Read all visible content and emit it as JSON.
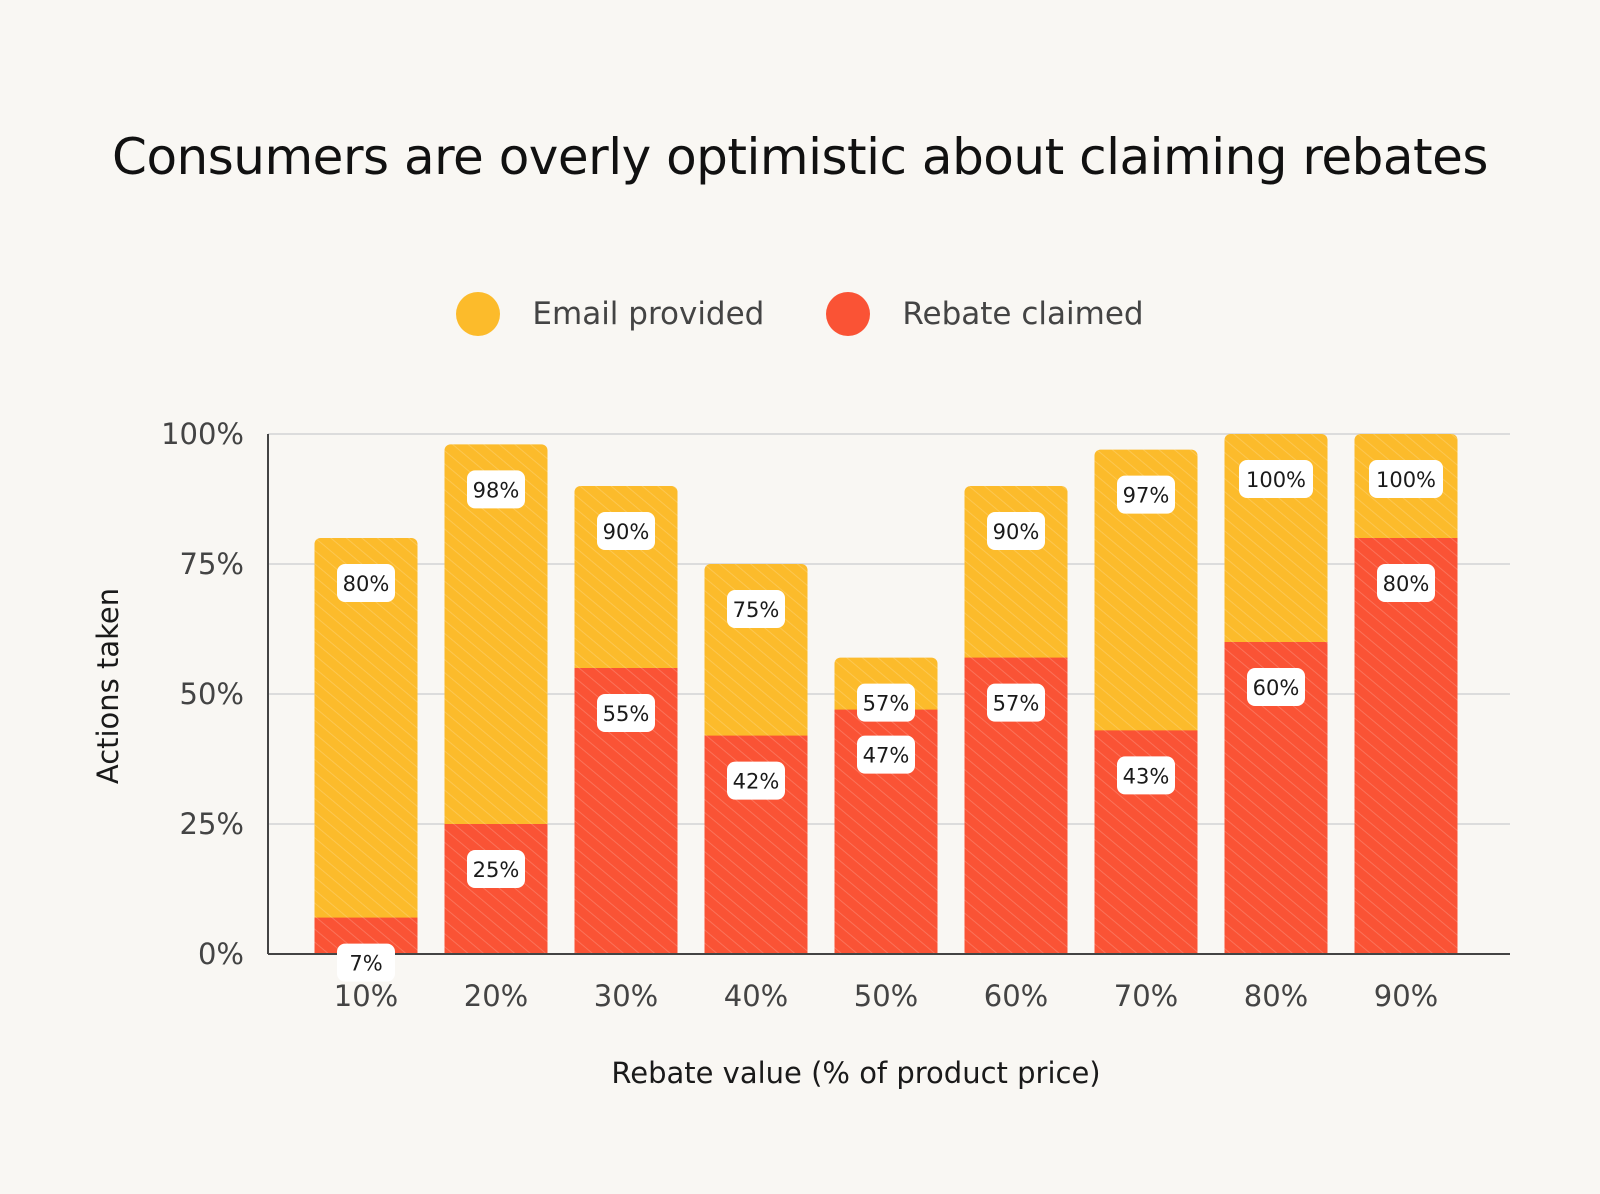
{
  "colors": {
    "email": "#fcbb2b",
    "rebate": "#fa5335",
    "grid": "#dcdcdc",
    "axis": "#444444",
    "background": "#f9f7f3"
  },
  "chart_data": {
    "type": "bar",
    "title": "Consumers are overly optimistic about claiming rebates",
    "xlabel": "Rebate value (% of product price)",
    "ylabel": "Actions taken",
    "ylim": [
      0,
      100
    ],
    "yticks": [
      "0%",
      "25%",
      "50%",
      "75%",
      "100%"
    ],
    "ytick_values": [
      0,
      25,
      50,
      75,
      100
    ],
    "legend_position": "top-center",
    "categories": [
      "10%",
      "20%",
      "30%",
      "40%",
      "50%",
      "60%",
      "70%",
      "80%",
      "90%"
    ],
    "series": [
      {
        "name": "Email provided",
        "values": [
          80,
          98,
          90,
          75,
          57,
          90,
          97,
          100,
          100
        ],
        "labels": [
          "80%",
          "98%",
          "90%",
          "75%",
          "57%",
          "90%",
          "97%",
          "100%",
          "100%"
        ]
      },
      {
        "name": "Rebate claimed",
        "values": [
          7,
          25,
          55,
          42,
          47,
          57,
          43,
          60,
          80
        ],
        "labels": [
          "7%",
          "25%",
          "55%",
          "42%",
          "47%",
          "57%",
          "43%",
          "60%",
          "80%"
        ]
      }
    ]
  }
}
